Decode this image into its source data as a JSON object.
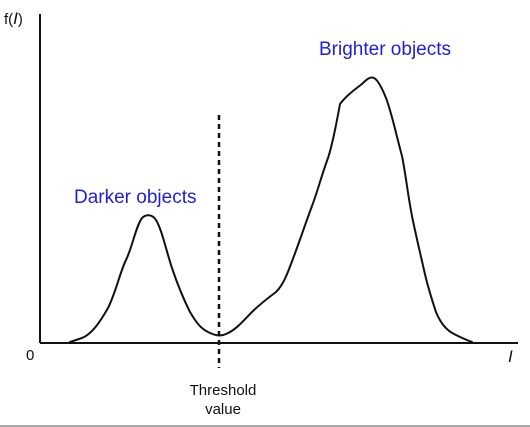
{
  "axes": {
    "y_label_prefix": "f(",
    "y_label_var": "I",
    "y_label_suffix": ")",
    "origin_label": "0",
    "x_label": "I"
  },
  "annotations": {
    "darker": "Darker objects",
    "brighter": "Brighter objects"
  },
  "threshold": {
    "label_line1": "Threshold",
    "label_line2": "value"
  },
  "colors": {
    "annotation": "#1f1fd6",
    "curve": "#111111",
    "axes": "#111111"
  }
}
